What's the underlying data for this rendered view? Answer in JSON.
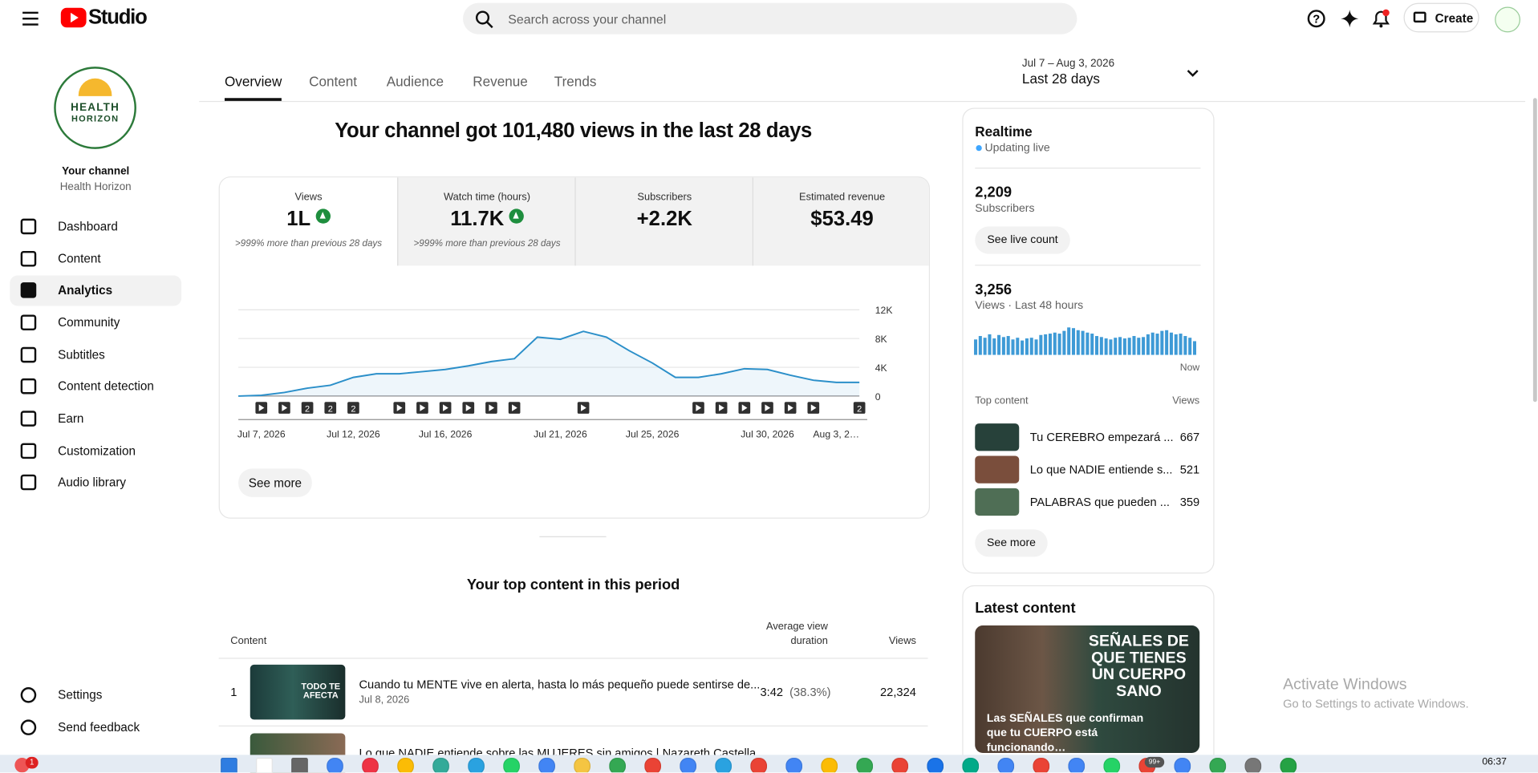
{
  "header": {
    "logo": "Studio",
    "search_placeholder": "Search across your channel",
    "create_button": "Create"
  },
  "sidebar": {
    "logo_lines": [
      "HEALTH",
      "HORIZON"
    ],
    "channel_label": "Your channel",
    "channel_name": "Health Horizon",
    "nav": [
      "Dashboard",
      "Content",
      "Analytics",
      "Community",
      "Subtitles",
      "Content detection",
      "Earn",
      "Customization",
      "Audio library"
    ],
    "active_index": 2,
    "footer": [
      "Settings",
      "Send feedback"
    ]
  },
  "tabs": {
    "items": [
      "Overview",
      "Content",
      "Audience",
      "Revenue",
      "Trends"
    ],
    "active_index": 0
  },
  "date_range": {
    "range": "Jul 7 – Aug 3, 2026",
    "label": "Last 28 days"
  },
  "headline": "Your channel got 101,480 views in the last 28 days",
  "metrics": [
    {
      "label": "Views",
      "value": "1L",
      "note": ">999% more than previous 28 days",
      "trend_up": true
    },
    {
      "label": "Watch time (hours)",
      "value": "11.7K",
      "note": ">999% more than previous 28 days",
      "trend_up": true
    },
    {
      "label": "Subscribers",
      "value": "+2.2K"
    },
    {
      "label": "Estimated revenue",
      "value": "$53.49"
    }
  ],
  "chart_data": {
    "type": "line",
    "categories": [
      "Jul 7, 2026",
      null,
      null,
      null,
      null,
      "Jul 12, 2026",
      null,
      null,
      null,
      "Jul 16, 2026",
      null,
      null,
      null,
      null,
      "Jul 21, 2026",
      null,
      null,
      null,
      "Jul 25, 2026",
      null,
      null,
      null,
      null,
      "Jul 30, 2026",
      null,
      null,
      null,
      "Aug 3, 2…"
    ],
    "values": [
      0,
      100,
      500,
      1100,
      1500,
      2600,
      3100,
      3100,
      3400,
      3700,
      4200,
      4800,
      5200,
      8200,
      7900,
      9000,
      8200,
      6300,
      4600,
      2600,
      2600,
      3100,
      3800,
      3700,
      2900,
      2200,
      1900,
      1900
    ],
    "color": "#2b8fc9",
    "ylim": [
      0,
      12000
    ],
    "yticks": [
      {
        "value": 0,
        "label": "0"
      },
      {
        "value": 4000,
        "label": "4K"
      },
      {
        "value": 8000,
        "label": "8K"
      },
      {
        "value": 12000,
        "label": "12K"
      }
    ],
    "grid": true,
    "video_markers": [
      {
        "day": 1,
        "count": 1
      },
      {
        "day": 2,
        "count": 1
      },
      {
        "day": 3,
        "count": 2
      },
      {
        "day": 4,
        "count": 2
      },
      {
        "day": 5,
        "count": 2
      },
      {
        "day": 7,
        "count": 1
      },
      {
        "day": 8,
        "count": 1
      },
      {
        "day": 9,
        "count": 1
      },
      {
        "day": 10,
        "count": 1
      },
      {
        "day": 11,
        "count": 1
      },
      {
        "day": 12,
        "count": 1
      },
      {
        "day": 15,
        "count": 1
      },
      {
        "day": 20,
        "count": 1
      },
      {
        "day": 21,
        "count": 1
      },
      {
        "day": 22,
        "count": 1
      },
      {
        "day": 23,
        "count": 1
      },
      {
        "day": 24,
        "count": 1
      },
      {
        "day": 25,
        "count": 1
      },
      {
        "day": 27,
        "count": 2
      }
    ]
  },
  "see_more": "See more",
  "realtime": {
    "title": "Realtime",
    "status": "Updating live",
    "subscribers": "2,209",
    "subscribers_label": "Subscribers",
    "live_count_button": "See live count",
    "views": "3,256",
    "views_label": "Views · Last 48 hours",
    "hourly_views": [
      45,
      55,
      50,
      60,
      48,
      58,
      52,
      55,
      45,
      50,
      42,
      48,
      50,
      45,
      58,
      60,
      62,
      65,
      62,
      70,
      80,
      78,
      72,
      70,
      65,
      62,
      55,
      52,
      48,
      45,
      50,
      52,
      48,
      50,
      55,
      50,
      52,
      60,
      65,
      62,
      70,
      72,
      65,
      60,
      62,
      55,
      50,
      40
    ],
    "now_label": "Now",
    "top_content_label": "Top content",
    "views_column": "Views",
    "top_content": [
      {
        "title": "Tu CEREBRO empezará ...",
        "views": 667
      },
      {
        "title": "Lo que NADIE entiende s...",
        "views": 521
      },
      {
        "title": "PALABRAS que pueden ...",
        "views": 359
      }
    ],
    "see_more": "See more"
  },
  "latest_content": {
    "title": "Latest content",
    "thumbnail_text": "SEÑALES DE QUE TIENES UN CUERPO SANO",
    "caption": "Las SEÑALES que confirman que tu CUERPO está funcionando…"
  },
  "top_content": {
    "title": "Your top content in this period",
    "columns": [
      "Content",
      "Average view duration",
      "Views"
    ],
    "rows": [
      {
        "rank": "1",
        "title": "Cuando tu MENTE vive en alerta, hasta lo más pequeño puede sentirse de...",
        "date": "Jul 8, 2026",
        "avg_duration": "3:42",
        "avg_percent": "(38.3%)",
        "views": "22,324",
        "thumb_text": "TODO TE AFECTA"
      },
      {
        "title": "Lo que NADIE entiende sobre las MUJERES sin amigos | Nazareth Castella..."
      }
    ]
  },
  "watermark": {
    "title": "Activate Windows",
    "subtitle": "Go to Settings to activate Windows."
  },
  "taskbar": {
    "time": "06:37",
    "badges": [
      "1",
      "99+"
    ]
  }
}
